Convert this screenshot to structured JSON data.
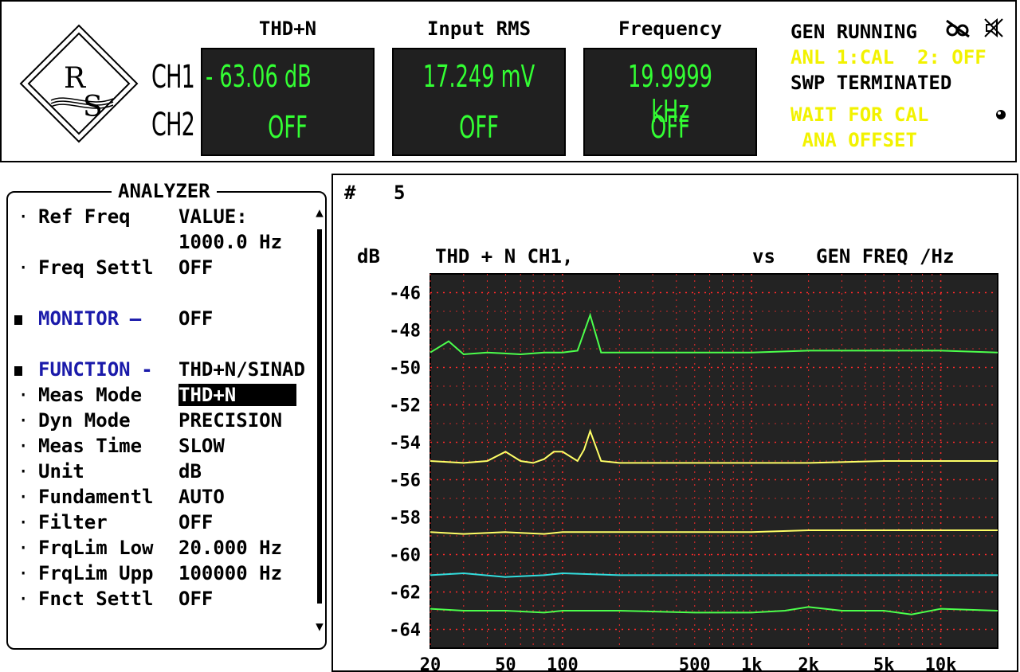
{
  "header": {
    "channels": [
      "CH1",
      "CH2"
    ],
    "displays": [
      {
        "title": "THD+N",
        "ch1": "- 63.06 dB",
        "ch2": "OFF"
      },
      {
        "title": "Input RMS",
        "ch1": "17.249 mV",
        "ch2": "OFF"
      },
      {
        "title": "Frequency",
        "ch1": "19.9999 kHz",
        "ch2": "OFF"
      }
    ],
    "status": {
      "gen": "GEN RUNNING",
      "anl": "ANL 1:CAL  2: OFF",
      "swp": "SWP TERMINATED",
      "wait": "WAIT FOR CAL",
      "offset": " ANA OFFSET"
    },
    "logo_text": [
      "R",
      "S"
    ],
    "icons": [
      "network-icon",
      "speaker-muted-icon",
      "busy-indicator-icon"
    ]
  },
  "analyzer": {
    "title": "ANALYZER",
    "rows": [
      {
        "marker": "dot",
        "label": "Ref Freq",
        "value": "VALUE:"
      },
      {
        "marker": "none",
        "label": "",
        "value": "1000.0 Hz"
      },
      {
        "marker": "dot",
        "label": "Freq Settl",
        "value": "OFF"
      },
      {
        "marker": "square",
        "label": "MONITOR",
        "dash": "—",
        "value": "OFF",
        "highlight_label": true
      },
      {
        "marker": "square",
        "label": "FUNCTION",
        "dash": "-",
        "value": "THD+N/SINAD",
        "highlight_label": true
      },
      {
        "marker": "dot",
        "label": "Meas Mode",
        "value": "THD+N",
        "selected": true
      },
      {
        "marker": "dot",
        "label": "Dyn Mode",
        "value": "PRECISION"
      },
      {
        "marker": "dot",
        "label": "Meas Time",
        "value": "SLOW"
      },
      {
        "marker": "dot",
        "label": "Unit",
        "value": "dB"
      },
      {
        "marker": "dot",
        "label": "Fundamentl",
        "value": "AUTO"
      },
      {
        "marker": "dot",
        "label": "Filter",
        "value": "OFF"
      },
      {
        "marker": "dot",
        "label": "FrqLim Low",
        "value": "20.000 Hz"
      },
      {
        "marker": "dot",
        "label": "FrqLim Upp",
        "value": "100000 Hz"
      },
      {
        "marker": "dot",
        "label": "Fnct Settl",
        "value": "OFF"
      }
    ],
    "scroll_up": "▲",
    "scroll_down": "▼"
  },
  "graph": {
    "index_label": "#",
    "index_value": "5",
    "y_unit": "dB",
    "title_left": "THD + N CH1,",
    "title_mid": "vs",
    "title_right": "GEN FREQ /Hz"
  },
  "chart_data": {
    "type": "line",
    "title": "THD + N CH1, vs GEN FREQ /Hz",
    "xlabel": "GEN FREQ /Hz",
    "ylabel": "dB",
    "x_scale": "log",
    "xlim": [
      20,
      20000
    ],
    "ylim": [
      -65,
      -45
    ],
    "x_ticks": [
      {
        "value": 20,
        "label": "20"
      },
      {
        "value": 50,
        "label": "50"
      },
      {
        "value": 100,
        "label": "100"
      },
      {
        "value": 500,
        "label": "500"
      },
      {
        "value": 1000,
        "label": "1k"
      },
      {
        "value": 2000,
        "label": "2k"
      },
      {
        "value": 5000,
        "label": "5k"
      },
      {
        "value": 10000,
        "label": "10k"
      }
    ],
    "y_ticks": [
      -46,
      -48,
      -50,
      -52,
      -54,
      -56,
      -58,
      -60,
      -62,
      -64
    ],
    "grid": true,
    "background": "#232323",
    "grid_color": "#ff2a2a",
    "series": [
      {
        "color": "#4cff4c",
        "x": [
          20,
          25,
          30,
          40,
          60,
          80,
          100,
          120,
          140,
          160,
          200,
          300,
          500,
          1000,
          2000,
          5000,
          10000,
          20000
        ],
        "y": [
          -49.2,
          -48.6,
          -49.3,
          -49.2,
          -49.3,
          -49.2,
          -49.2,
          -49.1,
          -47.2,
          -49.2,
          -49.2,
          -49.2,
          -49.2,
          -49.2,
          -49.1,
          -49.1,
          -49.1,
          -49.2
        ]
      },
      {
        "color": "#ffff66",
        "x": [
          20,
          30,
          40,
          50,
          60,
          70,
          80,
          90,
          100,
          120,
          130,
          140,
          160,
          200,
          300,
          500,
          1000,
          2000,
          5000,
          10000,
          20000
        ],
        "y": [
          -55.0,
          -55.1,
          -55.0,
          -54.5,
          -55.0,
          -55.1,
          -54.9,
          -54.5,
          -54.5,
          -55.0,
          -54.4,
          -53.4,
          -55.0,
          -55.1,
          -55.1,
          -55.1,
          -55.1,
          -55.1,
          -55.0,
          -55.0,
          -55.0
        ]
      },
      {
        "color": "#ffff66",
        "x": [
          20,
          30,
          50,
          80,
          100,
          200,
          500,
          1000,
          2000,
          5000,
          10000,
          20000
        ],
        "y": [
          -58.8,
          -58.9,
          -58.8,
          -58.9,
          -58.8,
          -58.8,
          -58.8,
          -58.8,
          -58.7,
          -58.7,
          -58.7,
          -58.7
        ]
      },
      {
        "color": "#33dddd",
        "x": [
          20,
          30,
          50,
          80,
          100,
          200,
          500,
          1000,
          2000,
          5000,
          10000,
          20000
        ],
        "y": [
          -61.1,
          -61.0,
          -61.2,
          -61.1,
          -61.0,
          -61.1,
          -61.1,
          -61.1,
          -61.1,
          -61.1,
          -61.1,
          -61.1
        ]
      },
      {
        "color": "#4cff4c",
        "x": [
          20,
          30,
          50,
          80,
          100,
          200,
          500,
          1000,
          1500,
          2000,
          3000,
          5000,
          7000,
          10000,
          20000
        ],
        "y": [
          -62.9,
          -63.0,
          -63.0,
          -63.1,
          -63.0,
          -63.0,
          -63.1,
          -63.1,
          -63.0,
          -62.8,
          -63.0,
          -63.0,
          -63.2,
          -62.9,
          -63.0
        ]
      }
    ]
  }
}
